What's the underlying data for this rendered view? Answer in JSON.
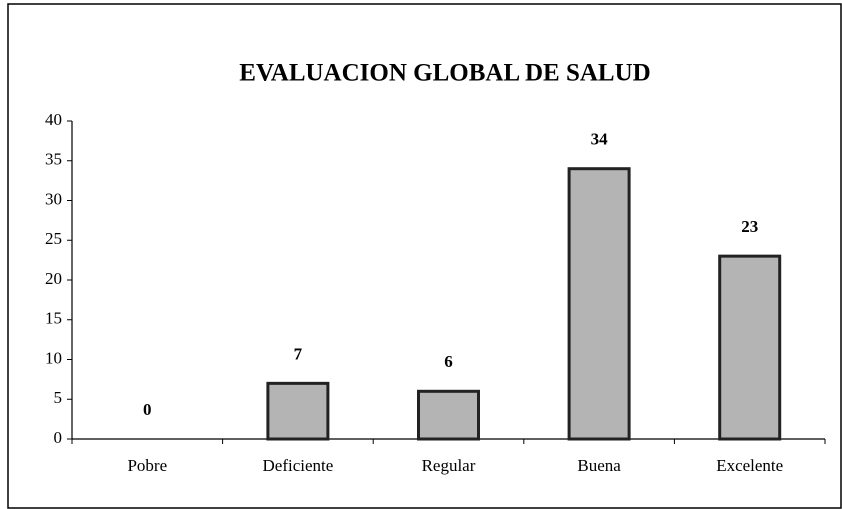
{
  "chart_data": {
    "type": "bar",
    "title": "EVALUACION GLOBAL DE SALUD",
    "categories": [
      "Pobre",
      "Deficiente",
      "Regular",
      "Buena",
      "Excelente"
    ],
    "values": [
      0,
      7,
      6,
      34,
      23
    ],
    "color": "#b4b4b4",
    "ylim": [
      0,
      40
    ],
    "yticks": [
      0,
      5,
      10,
      15,
      20,
      25,
      30,
      35,
      40
    ],
    "grid": false
  }
}
